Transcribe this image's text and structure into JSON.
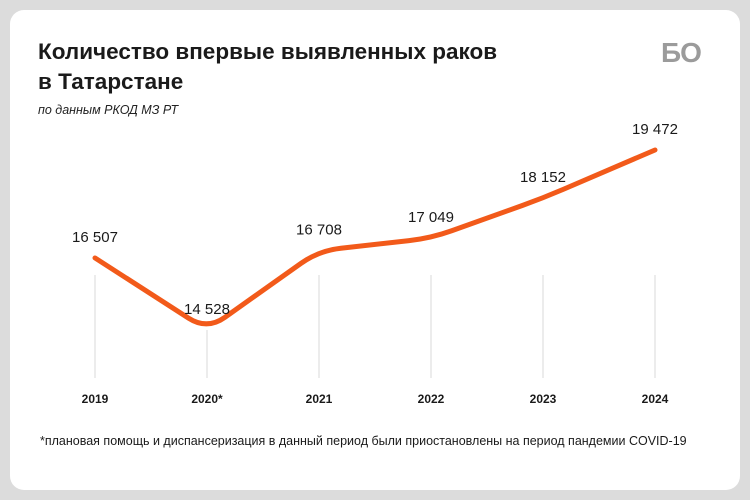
{
  "header": {
    "title_line1": "Количество впервые выявленных раков",
    "title_line2": "в Татарстане",
    "subtitle": "по данным РКОД МЗ РТ",
    "logo": "БО"
  },
  "footnote": "*плановая помощь и диспансеризация в данный период были приостановлены на период пандемии COVID-19",
  "colors": {
    "line": "#f25a1a",
    "gridline": "#d8d8d8",
    "background": "#dcdcdc",
    "card": "#ffffff"
  },
  "chart_data": {
    "type": "line",
    "title": "Количество впервые выявленных раков в Татарстане",
    "subtitle": "по данным РКОД МЗ РТ",
    "categories": [
      "2019",
      "2020*",
      "2021",
      "2022",
      "2023",
      "2024"
    ],
    "series": [
      {
        "name": "Количество впервые выявленных раков",
        "values": [
          16507,
          14528,
          16708,
          17049,
          18152,
          19472
        ],
        "labels": [
          "16 507",
          "14 528",
          "16 708",
          "17 049",
          "18 152",
          "19 472"
        ]
      }
    ],
    "xlabel": "",
    "ylabel": "",
    "grid": "vertical-per-category",
    "legend": "none",
    "ylim": [
      13500,
      19600
    ]
  }
}
